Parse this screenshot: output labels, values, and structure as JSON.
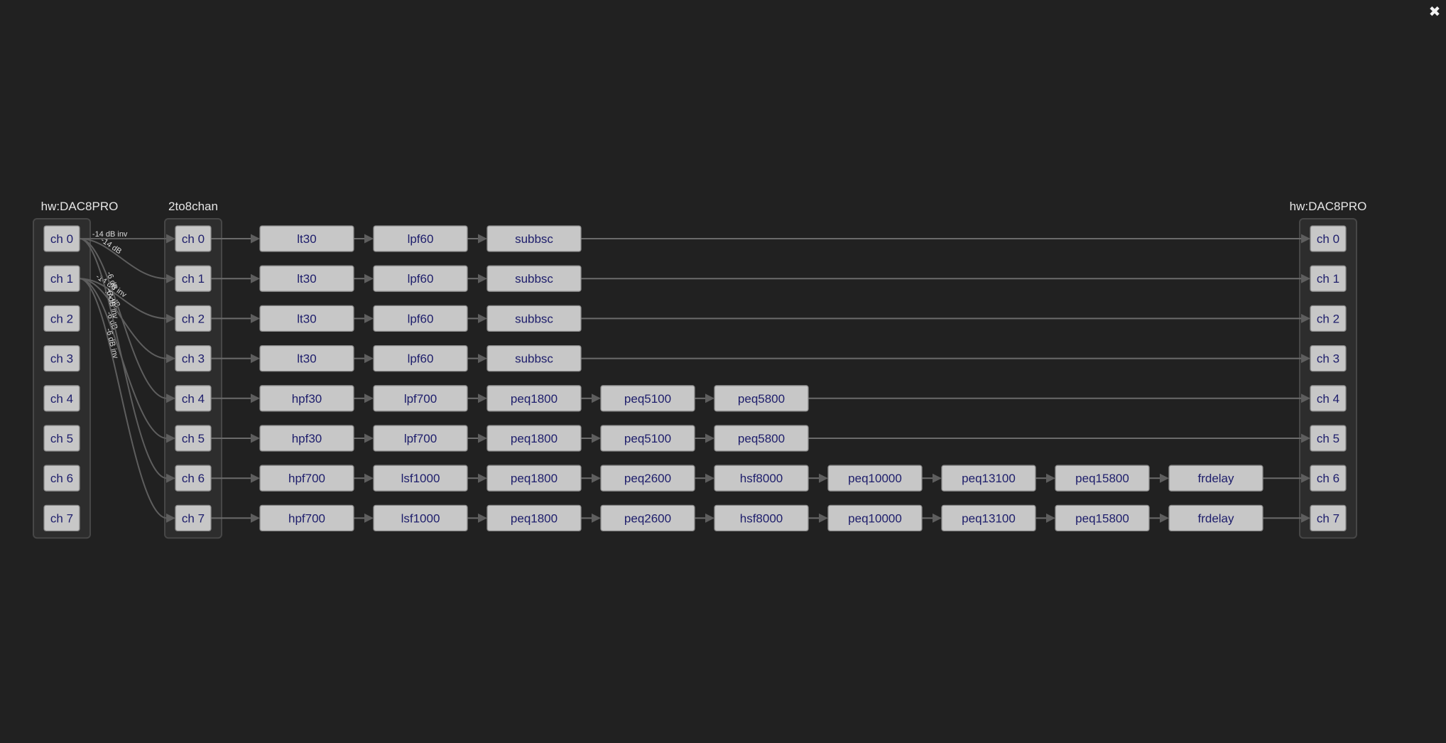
{
  "close": {
    "icon": "✖"
  },
  "groups": [
    {
      "id": "in",
      "label": "hw:DAC8PRO",
      "channels": [
        "ch 0",
        "ch 1",
        "ch 2",
        "ch 3",
        "ch 4",
        "ch 5",
        "ch 6",
        "ch 7"
      ]
    },
    {
      "id": "mix",
      "label": "2to8chan",
      "channels": [
        "ch 0",
        "ch 1",
        "ch 2",
        "ch 3",
        "ch 4",
        "ch 5",
        "ch 6",
        "ch 7"
      ]
    },
    {
      "id": "out",
      "label": "hw:DAC8PRO",
      "channels": [
        "ch 0",
        "ch 1",
        "ch 2",
        "ch 3",
        "ch 4",
        "ch 5",
        "ch 6",
        "ch 7"
      ]
    }
  ],
  "pipelines": [
    [
      "lt30",
      "lpf60",
      "subbsc"
    ],
    [
      "lt30",
      "lpf60",
      "subbsc"
    ],
    [
      "lt30",
      "lpf60",
      "subbsc"
    ],
    [
      "lt30",
      "lpf60",
      "subbsc"
    ],
    [
      "hpf30",
      "lpf700",
      "peq1800",
      "peq5100",
      "peq5800"
    ],
    [
      "hpf30",
      "lpf700",
      "peq1800",
      "peq5100",
      "peq5800"
    ],
    [
      "hpf700",
      "lsf1000",
      "peq1800",
      "peq2600",
      "hsf8000",
      "peq10000",
      "peq13100",
      "peq15800",
      "frdelay"
    ],
    [
      "hpf700",
      "lsf1000",
      "peq1800",
      "peq2600",
      "hsf8000",
      "peq10000",
      "peq13100",
      "peq15800",
      "frdelay"
    ]
  ],
  "mixer_connections": [
    {
      "from": 0,
      "to": 0,
      "label": "-14 dB inv"
    },
    {
      "from": 0,
      "to": 1,
      "label": "-14 dB"
    },
    {
      "from": 1,
      "to": 2,
      "label": "-14 dB inv"
    },
    {
      "from": 1,
      "to": 3,
      "label": "-14 dB"
    },
    {
      "from": 0,
      "to": 4,
      "label": "-6 dB"
    },
    {
      "from": 1,
      "to": 5,
      "label": "-6 dB"
    },
    {
      "from": 0,
      "to": 6,
      "label": "-6 dB inv"
    },
    {
      "from": 1,
      "to": 7,
      "label": "-6 dB inv"
    }
  ]
}
